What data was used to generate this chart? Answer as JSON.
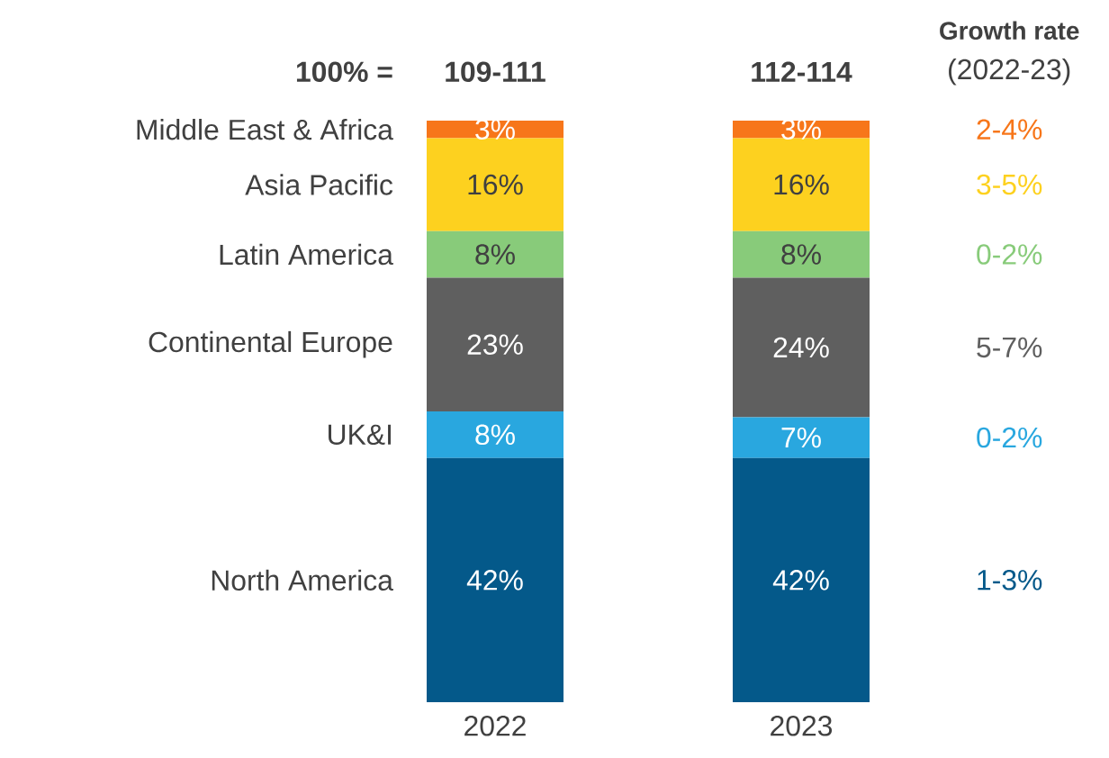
{
  "chart_data": {
    "type": "bar",
    "stacked": true,
    "categories": [
      "2022",
      "2023"
    ],
    "series": [
      {
        "name": "North America",
        "color": "#04598a",
        "values": [
          42,
          42
        ],
        "value_labels": [
          "42%",
          "42%"
        ]
      },
      {
        "name": "UK&I",
        "color": "#29a7df",
        "values": [
          8,
          7
        ],
        "value_labels": [
          "8%",
          "7%"
        ]
      },
      {
        "name": "Continental Europe",
        "color": "#5f5f5f",
        "values": [
          23,
          24
        ],
        "value_labels": [
          "23%",
          "24%"
        ]
      },
      {
        "name": "Latin America",
        "color": "#88cb7a",
        "values": [
          8,
          8
        ],
        "value_labels": [
          "8%",
          "8%"
        ]
      },
      {
        "name": "Asia Pacific",
        "color": "#fdd11f",
        "values": [
          16,
          16
        ],
        "value_labels": [
          "16%",
          "16%"
        ]
      },
      {
        "name": "Middle East & Africa",
        "color": "#f7761a",
        "values": [
          3,
          3
        ],
        "value_labels": [
          "3%",
          "3%"
        ]
      }
    ],
    "totals": [
      "109-111",
      "112-114"
    ],
    "annotations": [
      "100% =",
      "Growth rate",
      "(2022-23)",
      "1-3%",
      "0-2%",
      "5-7%",
      "0-2%",
      "3-5%",
      "2-4%"
    ]
  }
}
